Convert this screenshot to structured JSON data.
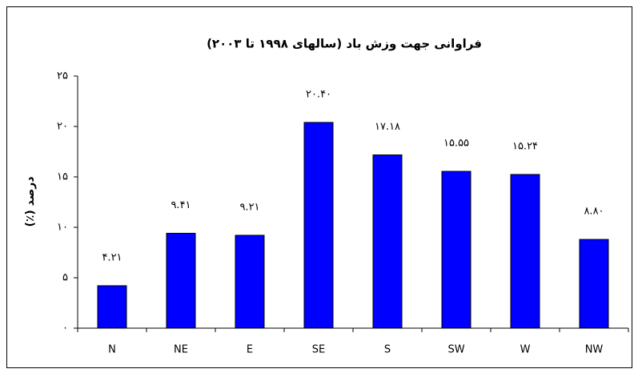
{
  "chart_data": {
    "type": "bar",
    "title": "فراوانی جهت وزش باد (سالهای ۱۹۹۸ تا ۲۰۰۳)",
    "y_label": "درصد (٪)",
    "categories": [
      "N",
      "NE",
      "E",
      "SE",
      "S",
      "SW",
      "W",
      "NW"
    ],
    "values": [
      4.21,
      9.41,
      9.21,
      20.4,
      17.18,
      15.55,
      15.24,
      8.8
    ],
    "value_labels": [
      "۴.۲۱",
      "۹.۴۱",
      "۹.۲۱",
      "۲۰.۴۰",
      "۱۷.۱۸",
      "۱۵.۵۵",
      "۱۵.۲۴",
      "۸.۸۰"
    ],
    "color": "#0000ff",
    "ylim": [
      0,
      25
    ],
    "yticks": [
      {
        "value": 0,
        "label": "۰"
      },
      {
        "value": 5,
        "label": "۵"
      },
      {
        "value": 10,
        "label": "۱۰"
      },
      {
        "value": 15,
        "label": "۱۵"
      },
      {
        "value": 20,
        "label": "۲۰"
      },
      {
        "value": 25,
        "label": "۲۵"
      }
    ],
    "grid": false
  }
}
